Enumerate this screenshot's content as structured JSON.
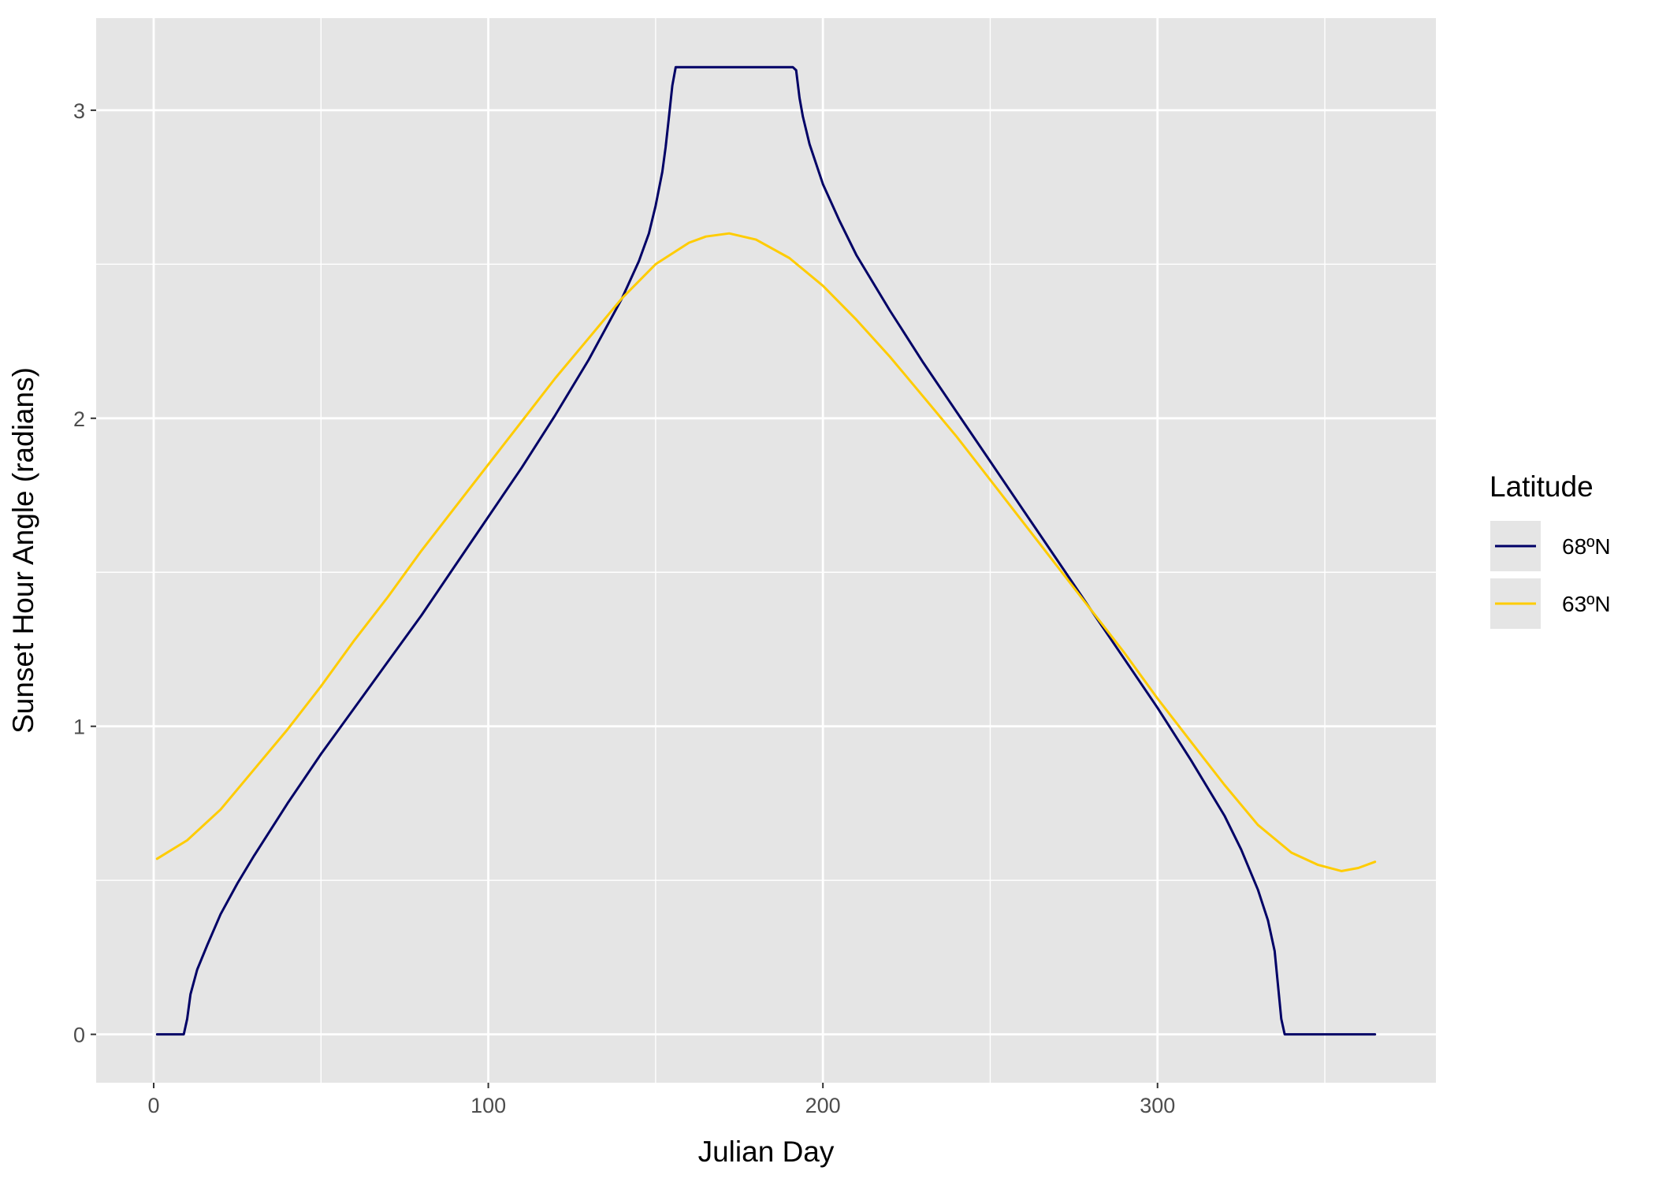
{
  "chart_data": {
    "type": "line",
    "title": "",
    "xlabel": "Julian Day",
    "ylabel": "Sunset Hour Angle (radians)",
    "xlim": [
      -17.2,
      383.2
    ],
    "ylim": [
      -0.157,
      3.299
    ],
    "x_ticks": [
      0,
      100,
      200,
      300
    ],
    "y_ticks": [
      0,
      1,
      2,
      3
    ],
    "x_tick_labels": [
      "0",
      "100",
      "200",
      "300"
    ],
    "y_tick_labels": [
      "0",
      "1",
      "2",
      "3"
    ],
    "grid": true,
    "background": "#e5e5e5",
    "legend": {
      "title": "Latitude",
      "position": "right"
    },
    "series": [
      {
        "name": "68ºN",
        "color": "#000066",
        "points": [
          [
            1,
            0
          ],
          [
            9,
            0
          ],
          [
            10,
            0.05
          ],
          [
            11,
            0.13
          ],
          [
            13,
            0.21
          ],
          [
            16,
            0.29
          ],
          [
            20,
            0.39
          ],
          [
            25,
            0.49
          ],
          [
            30,
            0.58
          ],
          [
            40,
            0.75
          ],
          [
            50,
            0.91
          ],
          [
            60,
            1.06
          ],
          [
            70,
            1.21
          ],
          [
            80,
            1.36
          ],
          [
            90,
            1.52
          ],
          [
            100,
            1.68
          ],
          [
            110,
            1.84
          ],
          [
            120,
            2.01
          ],
          [
            130,
            2.19
          ],
          [
            140,
            2.39
          ],
          [
            145,
            2.51
          ],
          [
            148,
            2.6
          ],
          [
            150,
            2.69
          ],
          [
            152,
            2.8
          ],
          [
            153,
            2.88
          ],
          [
            154,
            2.98
          ],
          [
            155,
            3.08
          ],
          [
            156,
            3.14
          ],
          [
            191,
            3.14
          ],
          [
            192,
            3.13
          ],
          [
            193,
            3.04
          ],
          [
            194,
            2.98
          ],
          [
            196,
            2.89
          ],
          [
            200,
            2.76
          ],
          [
            205,
            2.64
          ],
          [
            210,
            2.53
          ],
          [
            220,
            2.35
          ],
          [
            230,
            2.18
          ],
          [
            240,
            2.02
          ],
          [
            250,
            1.86
          ],
          [
            260,
            1.7
          ],
          [
            270,
            1.54
          ],
          [
            280,
            1.38
          ],
          [
            290,
            1.22
          ],
          [
            300,
            1.06
          ],
          [
            310,
            0.89
          ],
          [
            320,
            0.71
          ],
          [
            325,
            0.6
          ],
          [
            330,
            0.47
          ],
          [
            333,
            0.37
          ],
          [
            335,
            0.27
          ],
          [
            336,
            0.16
          ],
          [
            337,
            0.05
          ],
          [
            338,
            0
          ],
          [
            365,
            0
          ]
        ]
      },
      {
        "name": "63ºN",
        "color": "#ffcc00",
        "points": [
          [
            1,
            0.57
          ],
          [
            10,
            0.63
          ],
          [
            20,
            0.73
          ],
          [
            30,
            0.86
          ],
          [
            40,
            0.99
          ],
          [
            50,
            1.13
          ],
          [
            60,
            1.28
          ],
          [
            70,
            1.42
          ],
          [
            80,
            1.57
          ],
          [
            90,
            1.71
          ],
          [
            100,
            1.85
          ],
          [
            110,
            1.99
          ],
          [
            120,
            2.13
          ],
          [
            130,
            2.26
          ],
          [
            140,
            2.39
          ],
          [
            150,
            2.5
          ],
          [
            160,
            2.57
          ],
          [
            165,
            2.59
          ],
          [
            172,
            2.6
          ],
          [
            180,
            2.58
          ],
          [
            190,
            2.52
          ],
          [
            200,
            2.43
          ],
          [
            210,
            2.32
          ],
          [
            220,
            2.2
          ],
          [
            230,
            2.07
          ],
          [
            240,
            1.94
          ],
          [
            250,
            1.8
          ],
          [
            260,
            1.66
          ],
          [
            270,
            1.52
          ],
          [
            280,
            1.38
          ],
          [
            290,
            1.24
          ],
          [
            300,
            1.09
          ],
          [
            310,
            0.95
          ],
          [
            320,
            0.81
          ],
          [
            330,
            0.68
          ],
          [
            340,
            0.59
          ],
          [
            348,
            0.55
          ],
          [
            355,
            0.53
          ],
          [
            360,
            0.54
          ],
          [
            365,
            0.56
          ]
        ]
      }
    ]
  }
}
